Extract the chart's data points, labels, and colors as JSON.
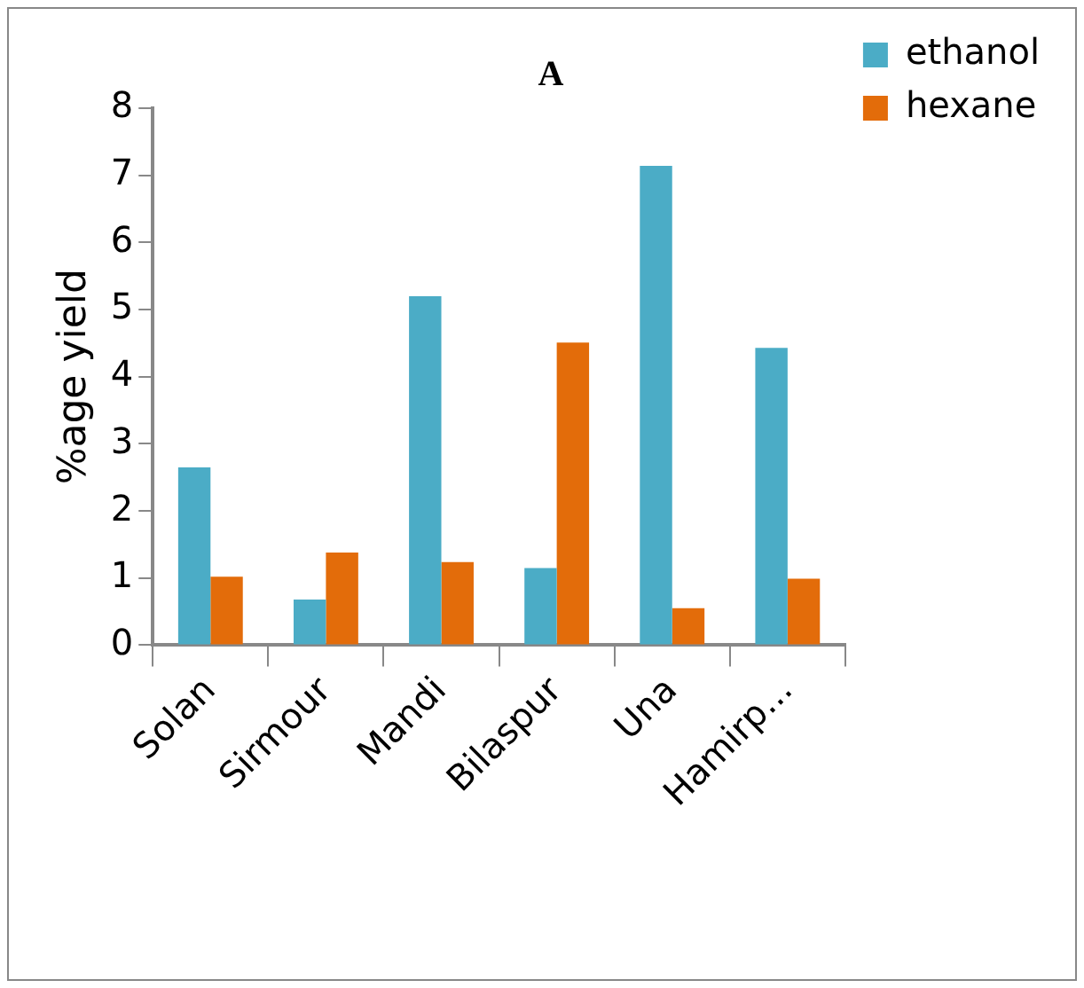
{
  "chart_data": {
    "type": "bar",
    "title": "A",
    "ylabel": "%age yield",
    "categories": [
      "Solan",
      "Sirmour",
      "Mandi",
      "Bilaspur",
      "Una",
      "Hamirp..."
    ],
    "series": [
      {
        "name": "ethanol",
        "color": "#4bacc6",
        "values": [
          2.65,
          0.68,
          5.2,
          1.15,
          7.14,
          4.43
        ]
      },
      {
        "name": "hexane",
        "color": "#e36c0a",
        "values": [
          1.02,
          1.38,
          1.24,
          4.51,
          0.55,
          0.99
        ]
      }
    ],
    "ylim": [
      0,
      8
    ],
    "yticks": [
      0,
      1,
      2,
      3,
      4,
      5,
      6,
      7,
      8
    ],
    "grid": false,
    "legend": "top right"
  }
}
